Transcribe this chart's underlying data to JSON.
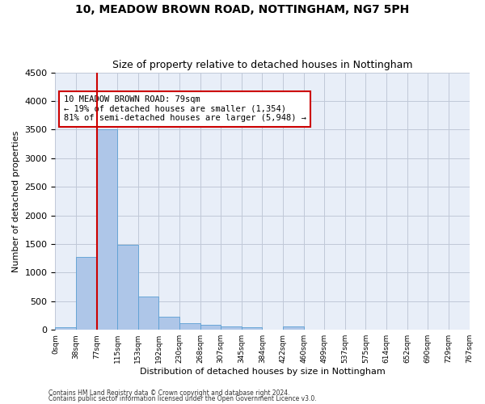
{
  "title": "10, MEADOW BROWN ROAD, NOTTINGHAM, NG7 5PH",
  "subtitle": "Size of property relative to detached houses in Nottingham",
  "xlabel": "Distribution of detached houses by size in Nottingham",
  "ylabel": "Number of detached properties",
  "footnote1": "Contains HM Land Registry data © Crown copyright and database right 2024.",
  "footnote2": "Contains public sector information licensed under the Open Government Licence v3.0.",
  "bar_color": "#aec6e8",
  "bar_edge_color": "#5a9fd4",
  "vline_color": "#cc0000",
  "vline_x": 2,
  "annotation_text": "10 MEADOW BROWN ROAD: 79sqm\n← 19% of detached houses are smaller (1,354)\n81% of semi-detached houses are larger (5,948) →",
  "annotation_box_color": "#cc0000",
  "bins": [
    "0sqm",
    "38sqm",
    "77sqm",
    "115sqm",
    "153sqm",
    "192sqm",
    "230sqm",
    "268sqm",
    "307sqm",
    "345sqm",
    "384sqm",
    "422sqm",
    "460sqm",
    "499sqm",
    "537sqm",
    "575sqm",
    "614sqm",
    "652sqm",
    "690sqm",
    "729sqm",
    "767sqm"
  ],
  "values": [
    40,
    1270,
    3510,
    1480,
    575,
    235,
    120,
    85,
    55,
    40,
    0,
    55,
    0,
    0,
    0,
    0,
    0,
    0,
    0,
    0
  ],
  "ylim": [
    0,
    4500
  ],
  "yticks": [
    0,
    500,
    1000,
    1500,
    2000,
    2500,
    3000,
    3500,
    4000,
    4500
  ],
  "background_color": "#e8eef8",
  "grid_color": "#c0c8d8",
  "fig_width": 6.0,
  "fig_height": 5.0,
  "title_fontsize": 10,
  "subtitle_fontsize": 9
}
